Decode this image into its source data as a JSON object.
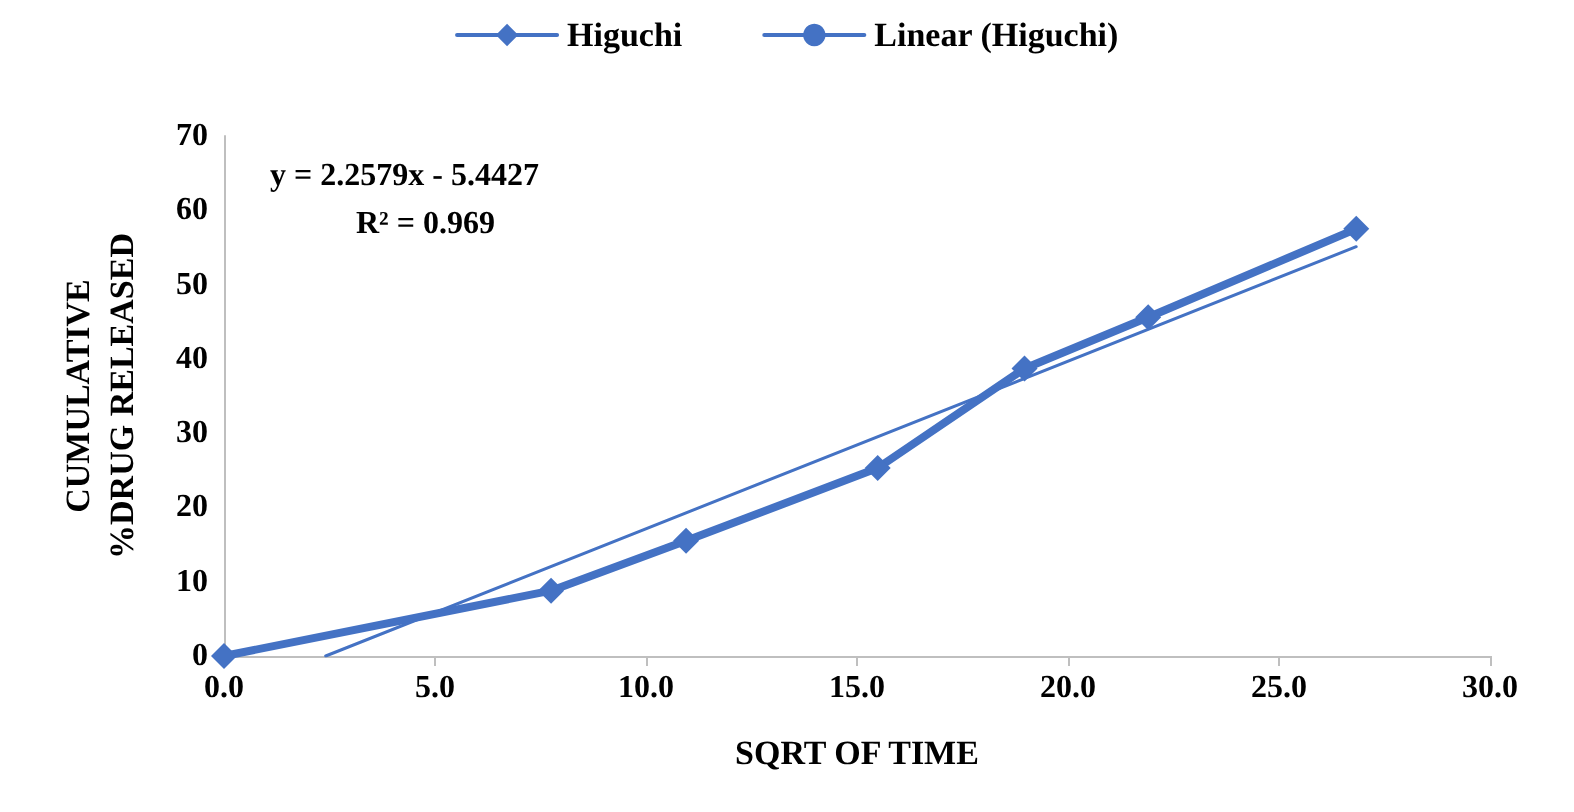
{
  "chart_data": {
    "type": "line",
    "xlabel": "SQRT OF TIME",
    "ylabel": "CUMULATIVE\n%DRUG RELEASED",
    "annotations": [
      "y = 2.2579x - 5.4427",
      "R² = 0.969"
    ],
    "series": [
      {
        "name": "Higuchi",
        "color": "#4472c4",
        "marker": "diamond",
        "x": [
          0,
          7.75,
          10.95,
          15.49,
          18.97,
          21.9,
          26.83
        ],
        "values": [
          0,
          8.8,
          15.5,
          25.3,
          38.7,
          45.6,
          57.5
        ]
      },
      {
        "name": "Linear (Higuchi)",
        "color": "#4472c4",
        "marker": "none",
        "x": [
          2.41,
          26.83
        ],
        "values": [
          0,
          55.1
        ]
      }
    ],
    "xlim": [
      0,
      30
    ],
    "xticks": [
      {
        "value": 0,
        "label": "0.0"
      },
      {
        "value": 5,
        "label": "5.0"
      },
      {
        "value": 10,
        "label": "10.0"
      },
      {
        "value": 15,
        "label": "15.0"
      },
      {
        "value": 20,
        "label": "20.0"
      },
      {
        "value": 25,
        "label": "25.0"
      },
      {
        "value": 30,
        "label": "30.0"
      }
    ],
    "ylim": [
      0,
      70
    ],
    "yticks": [
      0,
      10,
      20,
      30,
      40,
      50,
      60,
      70
    ],
    "grid": false,
    "legend": "top"
  }
}
